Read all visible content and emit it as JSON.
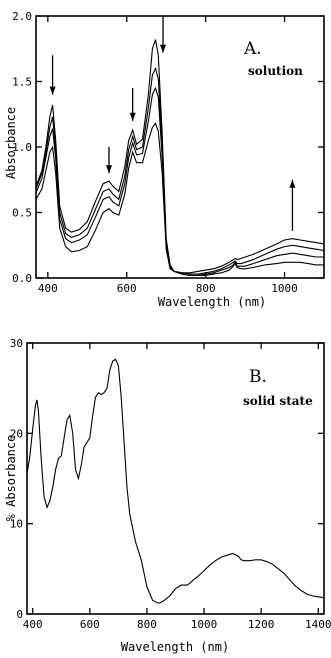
{
  "chart_data": [
    {
      "panel": "A.",
      "annotation": "solution",
      "type": "line",
      "xlabel": "Wavelength (nm)",
      "ylabel": "Absorbance",
      "xlim": [
        370,
        1100
      ],
      "ylim": [
        0,
        2.0
      ],
      "xticks": [
        400,
        600,
        800,
        1000
      ],
      "yticks": [
        0.0,
        0.5,
        1.0,
        1.5,
        2.0
      ],
      "ytick_labels": [
        "0.0",
        "0.5",
        "1.0",
        "1.5",
        "2.0"
      ],
      "series": [
        {
          "x": [
            370,
            385,
            395,
            405,
            412,
            420,
            430,
            445,
            460,
            480,
            500,
            520,
            540,
            555,
            565,
            580,
            595,
            605,
            615,
            625,
            640,
            655,
            665,
            673,
            680,
            690,
            700,
            710,
            720,
            740,
            760,
            780,
            800,
            820,
            840,
            860,
            870,
            875,
            880,
            890,
            900,
            920,
            950,
            980,
            1000,
            1020,
            1040,
            1060,
            1080,
            1100
          ],
          "y": [
            0.7,
            0.82,
            1.0,
            1.23,
            1.32,
            1.05,
            0.55,
            0.38,
            0.35,
            0.37,
            0.43,
            0.58,
            0.72,
            0.74,
            0.7,
            0.66,
            0.85,
            1.05,
            1.13,
            1.02,
            1.06,
            1.4,
            1.75,
            1.82,
            1.7,
            1.1,
            0.3,
            0.1,
            0.05,
            0.03,
            0.02,
            0.02,
            0.02,
            0.03,
            0.04,
            0.06,
            0.09,
            0.11,
            0.08,
            0.07,
            0.07,
            0.08,
            0.1,
            0.11,
            0.12,
            0.12,
            0.12,
            0.11,
            0.1,
            0.1
          ]
        },
        {
          "x": [
            370,
            385,
            395,
            405,
            412,
            420,
            430,
            445,
            460,
            480,
            500,
            520,
            540,
            555,
            565,
            580,
            595,
            605,
            615,
            625,
            640,
            655,
            665,
            673,
            680,
            690,
            700,
            710,
            720,
            740,
            760,
            780,
            800,
            820,
            840,
            860,
            870,
            875,
            880,
            890,
            900,
            920,
            950,
            980,
            1000,
            1020,
            1040,
            1060,
            1080,
            1100
          ],
          "y": [
            0.68,
            0.8,
            0.96,
            1.15,
            1.23,
            0.98,
            0.5,
            0.34,
            0.31,
            0.33,
            0.38,
            0.52,
            0.66,
            0.68,
            0.64,
            0.6,
            0.78,
            0.98,
            1.08,
            0.98,
            1.0,
            1.3,
            1.55,
            1.6,
            1.52,
            1.0,
            0.28,
            0.09,
            0.05,
            0.03,
            0.02,
            0.02,
            0.03,
            0.04,
            0.06,
            0.08,
            0.1,
            0.12,
            0.09,
            0.09,
            0.09,
            0.11,
            0.14,
            0.17,
            0.18,
            0.19,
            0.18,
            0.17,
            0.16,
            0.16
          ]
        },
        {
          "x": [
            370,
            385,
            395,
            405,
            412,
            420,
            430,
            445,
            460,
            480,
            500,
            520,
            540,
            555,
            565,
            580,
            595,
            605,
            615,
            625,
            640,
            655,
            665,
            673,
            680,
            690,
            700,
            710,
            720,
            740,
            760,
            780,
            800,
            820,
            840,
            860,
            870,
            875,
            880,
            890,
            900,
            920,
            950,
            980,
            1000,
            1020,
            1040,
            1060,
            1080,
            1100
          ],
          "y": [
            0.65,
            0.76,
            0.92,
            1.08,
            1.14,
            0.91,
            0.45,
            0.3,
            0.27,
            0.29,
            0.33,
            0.46,
            0.6,
            0.62,
            0.58,
            0.55,
            0.72,
            0.92,
            1.03,
            0.94,
            0.95,
            1.2,
            1.4,
            1.45,
            1.38,
            0.92,
            0.26,
            0.08,
            0.05,
            0.04,
            0.03,
            0.03,
            0.04,
            0.05,
            0.07,
            0.1,
            0.12,
            0.13,
            0.11,
            0.11,
            0.12,
            0.14,
            0.18,
            0.22,
            0.24,
            0.25,
            0.24,
            0.23,
            0.22,
            0.21
          ]
        },
        {
          "x": [
            370,
            385,
            395,
            405,
            412,
            420,
            430,
            445,
            460,
            480,
            500,
            520,
            540,
            555,
            565,
            580,
            595,
            605,
            615,
            625,
            640,
            655,
            665,
            673,
            680,
            690,
            700,
            710,
            720,
            740,
            760,
            780,
            800,
            820,
            840,
            860,
            870,
            875,
            880,
            890,
            900,
            920,
            950,
            980,
            1000,
            1020,
            1040,
            1060,
            1080,
            1100
          ],
          "y": [
            0.6,
            0.68,
            0.82,
            0.96,
            1.0,
            0.8,
            0.38,
            0.24,
            0.2,
            0.21,
            0.24,
            0.36,
            0.5,
            0.53,
            0.5,
            0.48,
            0.64,
            0.84,
            0.96,
            0.88,
            0.88,
            1.05,
            1.15,
            1.18,
            1.12,
            0.8,
            0.22,
            0.07,
            0.05,
            0.04,
            0.04,
            0.05,
            0.06,
            0.07,
            0.09,
            0.12,
            0.14,
            0.15,
            0.14,
            0.15,
            0.16,
            0.18,
            0.22,
            0.26,
            0.29,
            0.3,
            0.29,
            0.28,
            0.27,
            0.26
          ]
        }
      ],
      "arrows": [
        {
          "x": 412,
          "y_from": 1.7,
          "y_to": 1.4,
          "dir": "down"
        },
        {
          "x": 555,
          "y_from": 1.0,
          "y_to": 0.8,
          "dir": "down"
        },
        {
          "x": 615,
          "y_from": 1.45,
          "y_to": 1.2,
          "dir": "down"
        },
        {
          "x": 692,
          "y_from": 2.0,
          "y_to": 1.72,
          "dir": "down"
        },
        {
          "x": 1020,
          "y_from": 0.36,
          "y_to": 0.75,
          "dir": "up"
        }
      ]
    },
    {
      "panel": "B.",
      "annotation": "solid state",
      "type": "line",
      "xlabel": "Wavelength (nm)",
      "ylabel": "% Absorbance",
      "xlim": [
        380,
        1420
      ],
      "ylim": [
        0,
        30
      ],
      "xticks": [
        400,
        600,
        800,
        1000,
        1200,
        1400
      ],
      "yticks": [
        0,
        10,
        20,
        30
      ],
      "ytick_labels": [
        "0",
        "10",
        "20",
        "30"
      ],
      "series": [
        {
          "x": [
            380,
            390,
            400,
            410,
            415,
            420,
            430,
            440,
            450,
            460,
            470,
            480,
            490,
            500,
            510,
            520,
            530,
            540,
            550,
            560,
            570,
            580,
            590,
            600,
            610,
            620,
            630,
            640,
            650,
            660,
            670,
            680,
            690,
            700,
            710,
            720,
            730,
            740,
            750,
            760,
            770,
            780,
            790,
            800,
            820,
            840,
            850,
            860,
            880,
            900,
            920,
            940,
            950,
            960,
            980,
            1000,
            1020,
            1040,
            1060,
            1080,
            1100,
            1120,
            1130,
            1140,
            1160,
            1180,
            1200,
            1220,
            1240,
            1260,
            1280,
            1300,
            1320,
            1340,
            1360,
            1380,
            1400,
            1420
          ],
          "y": [
            15.5,
            17.5,
            20.5,
            23.2,
            23.7,
            22.5,
            17.0,
            13.0,
            11.8,
            12.5,
            14.0,
            16.0,
            17.2,
            17.5,
            19.5,
            21.5,
            22.0,
            20.0,
            16.0,
            15.0,
            16.5,
            18.5,
            19.0,
            19.5,
            22.0,
            24.0,
            24.5,
            24.3,
            24.5,
            25.0,
            27.0,
            28.0,
            28.2,
            27.5,
            24.0,
            19.0,
            14.0,
            11.0,
            9.5,
            8.0,
            7.0,
            6.0,
            4.5,
            3.0,
            1.5,
            1.2,
            1.3,
            1.5,
            2.0,
            2.8,
            3.2,
            3.2,
            3.4,
            3.7,
            4.2,
            4.8,
            5.4,
            5.9,
            6.3,
            6.5,
            6.7,
            6.4,
            6.0,
            5.9,
            5.9,
            6.0,
            6.0,
            5.8,
            5.5,
            5.0,
            4.5,
            3.8,
            3.1,
            2.6,
            2.2,
            2.0,
            1.9,
            1.8
          ]
        }
      ],
      "arrows": []
    }
  ]
}
